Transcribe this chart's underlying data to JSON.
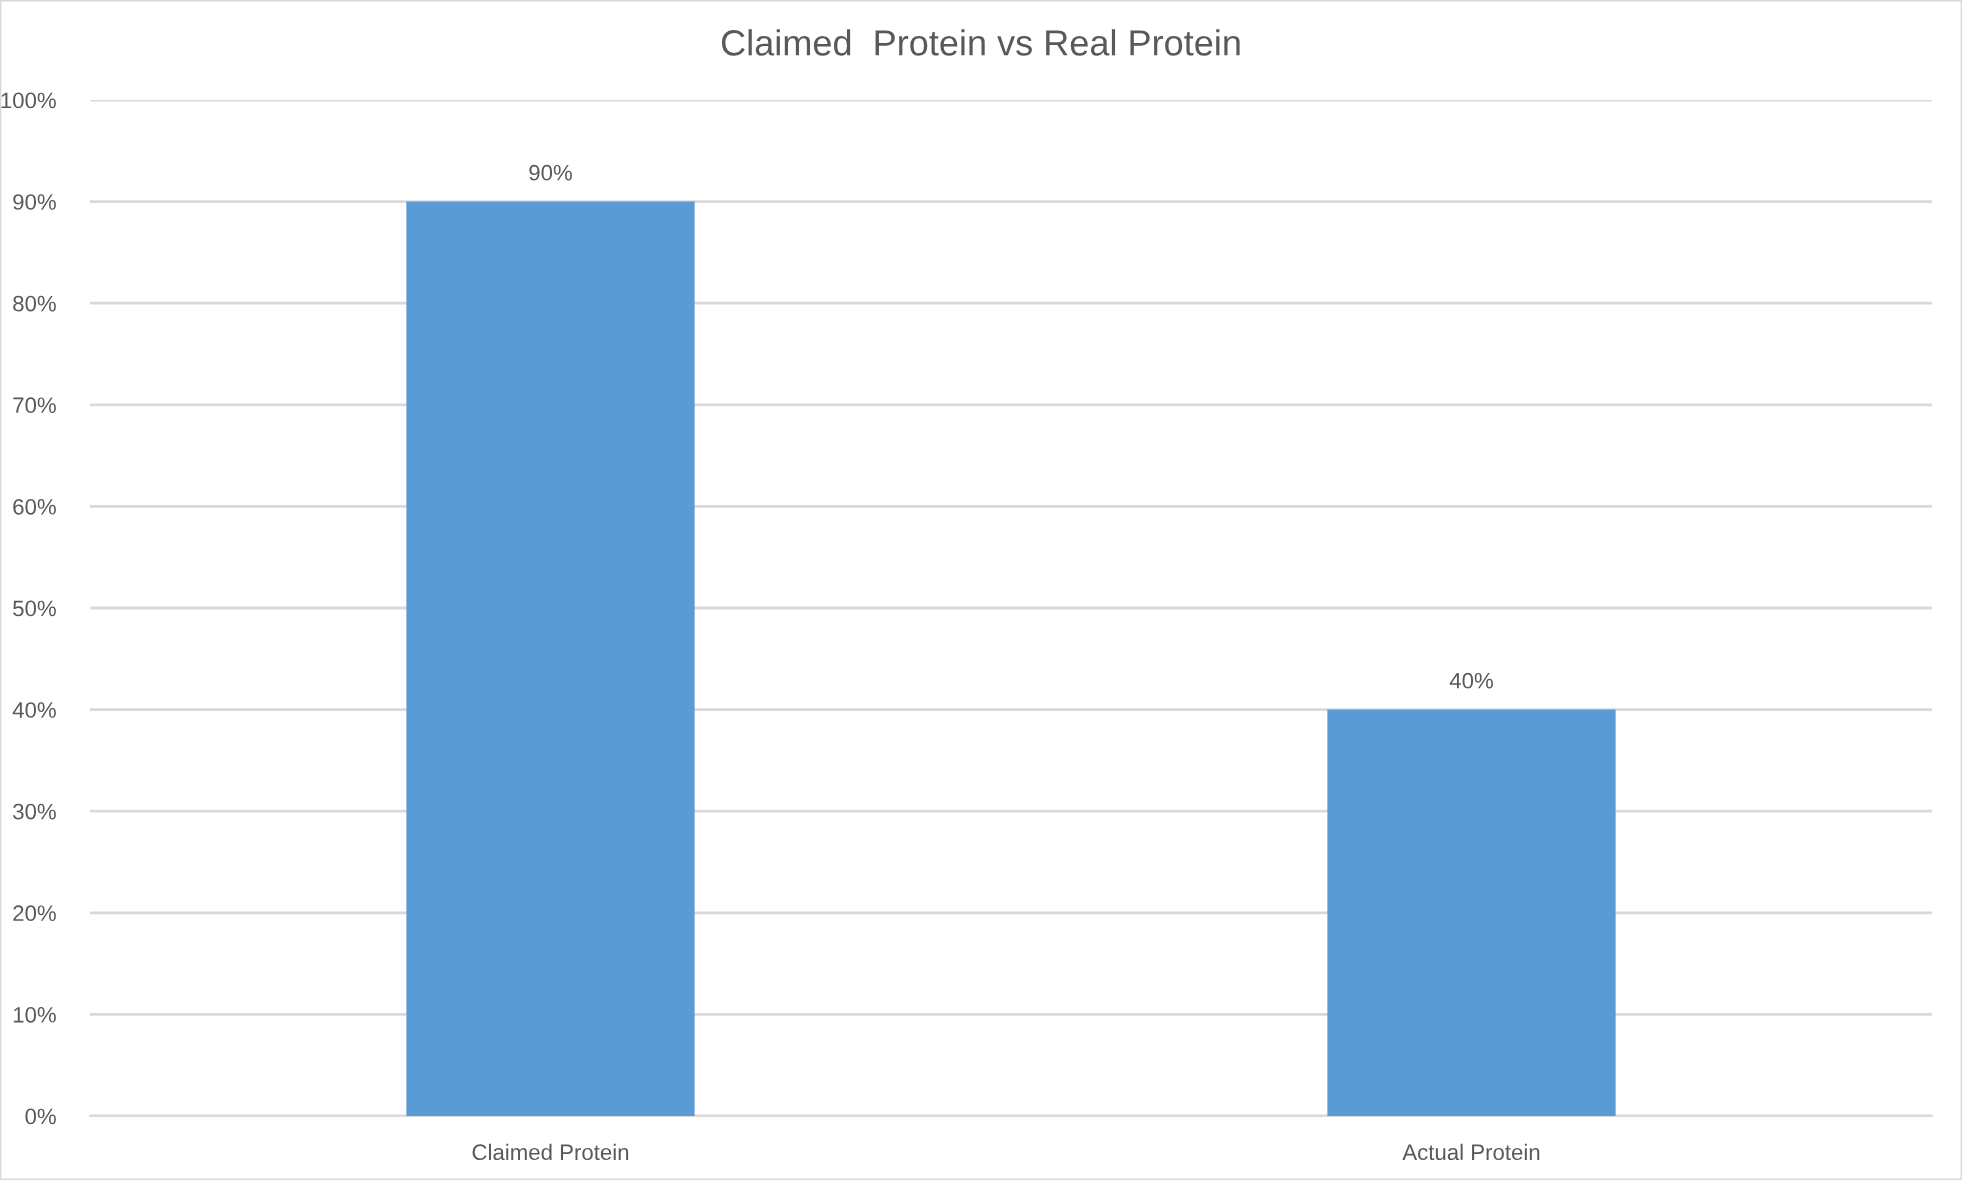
{
  "chart_data": {
    "type": "bar",
    "title": "Claimed  Protein vs Real Protein",
    "categories": [
      "Claimed Protein",
      "Actual Protein"
    ],
    "values": [
      90,
      40
    ],
    "value_labels": [
      "90%",
      "40%"
    ],
    "color": "#5b9bd5",
    "ylim": [
      0,
      100
    ],
    "yticks": [
      {
        "value": 0,
        "label": "0%"
      },
      {
        "value": 10,
        "label": "10%"
      },
      {
        "value": 20,
        "label": "20%"
      },
      {
        "value": 30,
        "label": "30%"
      },
      {
        "value": 40,
        "label": "40%"
      },
      {
        "value": 50,
        "label": "50%"
      },
      {
        "value": 60,
        "label": "60%"
      },
      {
        "value": 70,
        "label": "70%"
      },
      {
        "value": 80,
        "label": "80%"
      },
      {
        "value": 90,
        "label": "90%"
      },
      {
        "value": 100,
        "label": "100%"
      }
    ],
    "grid": "y",
    "legend": false
  }
}
